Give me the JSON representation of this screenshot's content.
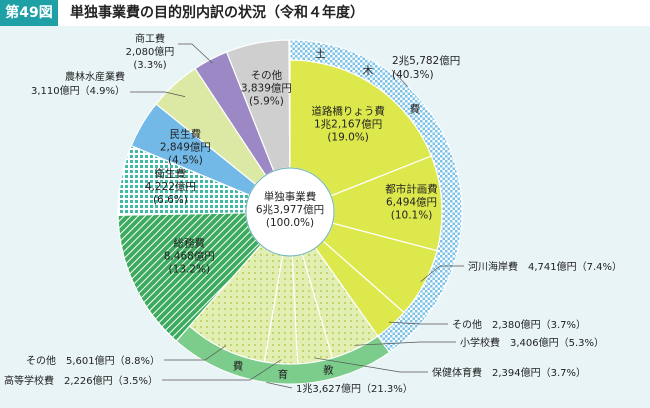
{
  "header": {
    "figure_label": "第49図",
    "title": "単独事業費の目的別内訳の状況（令和４年度）"
  },
  "chart_data": {
    "type": "pie",
    "center": [
      "単独事業費",
      "6兆3,977億円",
      "(100.0%)"
    ],
    "inner_slices": [
      {
        "key": "road",
        "lines": [
          "道路橋りょう費",
          "1兆2,167億円",
          "(19.0%)"
        ],
        "percent": 19.0,
        "color": "#dde84c"
      },
      {
        "key": "urban",
        "lines": [
          "都市計画費",
          "6,494億円",
          "(10.1%)"
        ],
        "percent": 10.1,
        "color": "#dde84c"
      },
      {
        "key": "river",
        "percent": 7.4,
        "color": "#dde84c"
      },
      {
        "key": "civil_other",
        "percent": 3.7,
        "color": "#dde84c"
      },
      {
        "key": "elementary",
        "percent": 5.3,
        "color": "#e2efb3"
      },
      {
        "key": "pe",
        "percent": 3.7,
        "color": "#e2efb3"
      },
      {
        "key": "high_school",
        "percent": 3.5,
        "color": "#e2efb3"
      },
      {
        "key": "edu_other",
        "percent": 8.8,
        "color": "#e2efb3"
      },
      {
        "key": "general",
        "lines": [
          "総務費",
          "8,468億円",
          "(13.2%)"
        ],
        "percent": 13.2,
        "color": "#3dab5f"
      },
      {
        "key": "health",
        "lines": [
          "衛生費",
          "4,222億円",
          "(6.6%)"
        ],
        "percent": 6.6,
        "color": "#3fb8a4"
      },
      {
        "key": "welfare",
        "lines": [
          "民生費",
          "2,849億円",
          "(4.5%)"
        ],
        "percent": 4.5,
        "color": "#72b9e8"
      },
      {
        "key": "agri",
        "percent": 4.9,
        "color": "#dce9a4"
      },
      {
        "key": "commerce",
        "percent": 3.3,
        "color": "#9b88c4"
      },
      {
        "key": "other",
        "lines": [
          "その他",
          "3,839億円",
          "(5.9%)"
        ],
        "percent": 5.9,
        "color": "#cfcfcf"
      }
    ],
    "outer_rings": [
      {
        "key": "civil",
        "name_chars": [
          "土",
          "木",
          "費"
        ],
        "total": "2兆5,782億円",
        "percent_label": "(40.3%)",
        "percent": 40.3,
        "color": "#7cc3ea"
      },
      {
        "key": "education",
        "name_chars": [
          "教",
          "育",
          "費"
        ],
        "total": "1兆3,627億円（21.3%）",
        "percent": 21.3,
        "color": "#7ccc8c"
      }
    ],
    "callouts": {
      "river": "河川海岸費　4,741億円（7.4%）",
      "civil_other": "その他　2,380億円（3.7%）",
      "elementary": "小学校費　3,406億円（5.3%）",
      "pe": "保健体育費　2,394億円（3.7%）",
      "high_school": "高等学校費　2,226億円（3.5%）",
      "edu_other": "その他　5,601億円（8.8%）",
      "agri_name": "農林水産業費",
      "agri_value": "3,110億円（4.9%）",
      "commerce_name": "商工費",
      "commerce_value": "2,080億円",
      "commerce_pct": "(3.3%)"
    }
  }
}
